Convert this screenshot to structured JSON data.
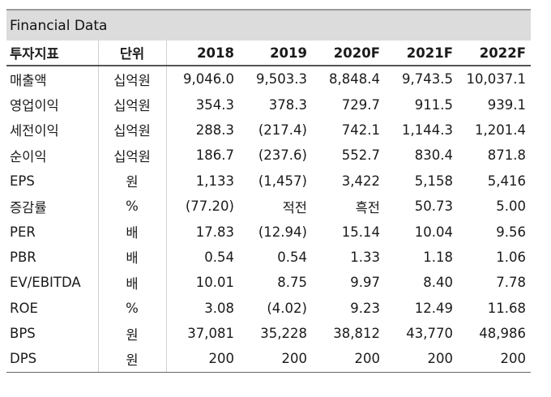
{
  "table": {
    "title": "Financial Data",
    "headers": {
      "metric": "투자지표",
      "unit": "단위",
      "years": [
        "2018",
        "2019",
        "2020F",
        "2021F",
        "2022F"
      ]
    },
    "rows": [
      {
        "metric": "매출액",
        "unit": "십억원",
        "values": [
          "9,046.0",
          "9,503.3",
          "8,848.4",
          "9,743.5",
          "10,037.1"
        ]
      },
      {
        "metric": "영업이익",
        "unit": "십억원",
        "values": [
          "354.3",
          "378.3",
          "729.7",
          "911.5",
          "939.1"
        ]
      },
      {
        "metric": "세전이익",
        "unit": "십억원",
        "values": [
          "288.3",
          "(217.4)",
          "742.1",
          "1,144.3",
          "1,201.4"
        ]
      },
      {
        "metric": "순이익",
        "unit": "십억원",
        "values": [
          "186.7",
          "(237.6)",
          "552.7",
          "830.4",
          "871.8"
        ]
      },
      {
        "metric": "EPS",
        "unit": "원",
        "values": [
          "1,133",
          "(1,457)",
          "3,422",
          "5,158",
          "5,416"
        ]
      },
      {
        "metric": "증감률",
        "unit": "%",
        "values": [
          "(77.20)",
          "적전",
          "흑전",
          "50.73",
          "5.00"
        ]
      },
      {
        "metric": "PER",
        "unit": "배",
        "values": [
          "17.83",
          "(12.94)",
          "15.14",
          "10.04",
          "9.56"
        ]
      },
      {
        "metric": "PBR",
        "unit": "배",
        "values": [
          "0.54",
          "0.54",
          "1.33",
          "1.18",
          "1.06"
        ]
      },
      {
        "metric": "EV/EBITDA",
        "unit": "배",
        "values": [
          "10.01",
          "8.75",
          "9.97",
          "8.40",
          "7.78"
        ]
      },
      {
        "metric": "ROE",
        "unit": "%",
        "values": [
          "3.08",
          "(4.02)",
          "9.23",
          "12.49",
          "11.68"
        ]
      },
      {
        "metric": "BPS",
        "unit": "원",
        "values": [
          "37,081",
          "35,228",
          "38,812",
          "43,770",
          "48,986"
        ]
      },
      {
        "metric": "DPS",
        "unit": "원",
        "values": [
          "200",
          "200",
          "200",
          "200",
          "200"
        ]
      }
    ]
  }
}
